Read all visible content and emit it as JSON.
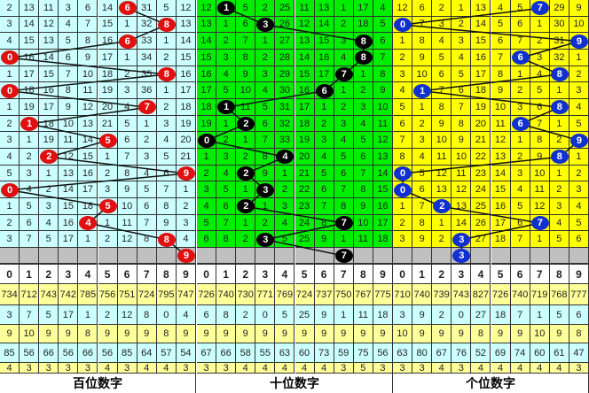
{
  "chart_data": {
    "type": "table",
    "digits": [
      "0",
      "1",
      "2",
      "3",
      "4",
      "5",
      "6",
      "7",
      "8",
      "9"
    ],
    "panels": [
      {
        "label": "百位数字",
        "bg": "#ccffff",
        "ball_color": "#e01010",
        "rows": [
          [
            2,
            13,
            11,
            3,
            6,
            14,
            6,
            31,
            5,
            12
          ],
          [
            3,
            14,
            12,
            4,
            7,
            15,
            1,
            32,
            8,
            13
          ],
          [
            4,
            15,
            13,
            5,
            8,
            16,
            6,
            33,
            1,
            14
          ],
          [
            0,
            16,
            14,
            6,
            9,
            17,
            1,
            34,
            2,
            15
          ],
          [
            1,
            17,
            15,
            7,
            10,
            18,
            2,
            35,
            8,
            16
          ],
          [
            0,
            18,
            16,
            8,
            11,
            19,
            3,
            36,
            1,
            17
          ],
          [
            1,
            19,
            17,
            9,
            12,
            20,
            4,
            7,
            2,
            18
          ],
          [
            2,
            1,
            18,
            10,
            13,
            21,
            5,
            1,
            3,
            19
          ],
          [
            3,
            1,
            19,
            11,
            14,
            5,
            6,
            2,
            4,
            20
          ],
          [
            4,
            2,
            2,
            12,
            15,
            1,
            7,
            3,
            5,
            21
          ],
          [
            5,
            3,
            1,
            13,
            16,
            2,
            8,
            4,
            6,
            9
          ],
          [
            0,
            4,
            2,
            14,
            17,
            3,
            9,
            5,
            7,
            1
          ],
          [
            1,
            5,
            3,
            15,
            18,
            5,
            10,
            6,
            8,
            2
          ],
          [
            2,
            6,
            4,
            16,
            4,
            1,
            11,
            7,
            9,
            3
          ],
          [
            3,
            7,
            5,
            17,
            1,
            2,
            12,
            8,
            8,
            4
          ]
        ],
        "picks": [
          6,
          8,
          6,
          0,
          8,
          0,
          7,
          1,
          5,
          2,
          9,
          0,
          5,
          4,
          8
        ],
        "next_pick": 9,
        "stats": [
          [
            "734",
            "712",
            "743",
            "742",
            "785",
            "756",
            "751",
            "724",
            "795",
            "747"
          ],
          [
            "3",
            "7",
            "5",
            "17",
            "1",
            "2",
            "12",
            "8",
            "0",
            "4"
          ],
          [
            "9",
            "10",
            "9",
            "9",
            "8",
            "9",
            "9",
            "9",
            "8",
            "9"
          ],
          [
            "85",
            "56",
            "66",
            "56",
            "66",
            "56",
            "85",
            "64",
            "57",
            "54"
          ],
          [
            "4",
            "3",
            "3",
            "3",
            "3",
            "4",
            "3",
            "4",
            "4",
            "3"
          ]
        ]
      },
      {
        "label": "十位数字",
        "bg": "#00ee00",
        "ball_color": "#000000",
        "rows": [
          [
            12,
            1,
            5,
            2,
            25,
            11,
            13,
            1,
            17,
            4
          ],
          [
            13,
            1,
            6,
            3,
            26,
            12,
            14,
            2,
            18,
            5
          ],
          [
            14,
            2,
            7,
            1,
            27,
            13,
            15,
            3,
            8,
            6
          ],
          [
            15,
            3,
            8,
            2,
            28,
            14,
            16,
            4,
            8,
            7
          ],
          [
            16,
            4,
            9,
            3,
            29,
            15,
            17,
            7,
            1,
            8
          ],
          [
            17,
            5,
            10,
            4,
            30,
            16,
            6,
            1,
            2,
            9
          ],
          [
            18,
            1,
            11,
            5,
            31,
            17,
            1,
            2,
            3,
            10
          ],
          [
            19,
            1,
            2,
            6,
            32,
            18,
            2,
            3,
            4,
            11
          ],
          [
            0,
            2,
            1,
            7,
            33,
            19,
            3,
            4,
            5,
            12
          ],
          [
            1,
            3,
            2,
            8,
            4,
            20,
            4,
            5,
            6,
            13
          ],
          [
            2,
            4,
            2,
            9,
            1,
            21,
            5,
            6,
            7,
            14
          ],
          [
            3,
            5,
            1,
            3,
            2,
            22,
            6,
            7,
            8,
            15
          ],
          [
            4,
            6,
            2,
            1,
            3,
            23,
            7,
            8,
            9,
            16
          ],
          [
            5,
            7,
            1,
            2,
            4,
            24,
            8,
            7,
            10,
            17
          ],
          [
            6,
            8,
            2,
            3,
            5,
            25,
            9,
            1,
            11,
            18
          ]
        ],
        "picks": [
          1,
          3,
          8,
          8,
          7,
          6,
          1,
          2,
          0,
          4,
          2,
          3,
          2,
          7,
          3
        ],
        "next_pick": 7,
        "stats": [
          [
            "726",
            "740",
            "730",
            "771",
            "769",
            "724",
            "737",
            "750",
            "767",
            "775"
          ],
          [
            "6",
            "8",
            "2",
            "0",
            "5",
            "25",
            "9",
            "1",
            "11",
            "18"
          ],
          [
            "9",
            "9",
            "9",
            "9",
            "9",
            "9",
            "9",
            "9",
            "9",
            "9"
          ],
          [
            "67",
            "66",
            "58",
            "55",
            "63",
            "60",
            "73",
            "59",
            "75",
            "56"
          ],
          [
            "3",
            "3",
            "4",
            "4",
            "4",
            "4",
            "4",
            "3",
            "5",
            "3"
          ]
        ]
      },
      {
        "label": "个位数字",
        "bg": "#ffff00",
        "ball_color": "#1030d0",
        "rows": [
          [
            12,
            6,
            2,
            1,
            13,
            4,
            5,
            7,
            29,
            9
          ],
          [
            0,
            7,
            3,
            2,
            14,
            5,
            6,
            1,
            30,
            10
          ],
          [
            1,
            8,
            4,
            3,
            15,
            6,
            7,
            2,
            31,
            9
          ],
          [
            2,
            9,
            5,
            4,
            16,
            7,
            6,
            3,
            32,
            1
          ],
          [
            3,
            10,
            6,
            5,
            17,
            8,
            1,
            4,
            8,
            2
          ],
          [
            4,
            1,
            7,
            6,
            18,
            9,
            2,
            5,
            1,
            3
          ],
          [
            5,
            1,
            8,
            7,
            19,
            10,
            3,
            6,
            8,
            4
          ],
          [
            6,
            2,
            9,
            8,
            20,
            11,
            6,
            7,
            1,
            5
          ],
          [
            7,
            3,
            10,
            9,
            21,
            12,
            1,
            8,
            2,
            9
          ],
          [
            8,
            4,
            11,
            10,
            22,
            13,
            2,
            9,
            8,
            1
          ],
          [
            0,
            5,
            12,
            11,
            23,
            14,
            3,
            10,
            1,
            2
          ],
          [
            0,
            6,
            13,
            12,
            24,
            15,
            4,
            11,
            2,
            3
          ],
          [
            1,
            7,
            2,
            13,
            25,
            16,
            5,
            12,
            3,
            4
          ],
          [
            2,
            8,
            1,
            14,
            26,
            17,
            6,
            7,
            4,
            5
          ],
          [
            3,
            9,
            2,
            3,
            27,
            18,
            7,
            1,
            5,
            6
          ]
        ],
        "picks": [
          7,
          0,
          9,
          6,
          8,
          1,
          8,
          6,
          9,
          8,
          0,
          0,
          2,
          7,
          3
        ],
        "next_pick": 3,
        "stats": [
          [
            "710",
            "740",
            "739",
            "743",
            "827",
            "726",
            "740",
            "719",
            "768",
            "777"
          ],
          [
            "3",
            "9",
            "2",
            "0",
            "27",
            "18",
            "7",
            "1",
            "5",
            "6"
          ],
          [
            "10",
            "9",
            "9",
            "9",
            "8",
            "9",
            "9",
            "10",
            "9",
            "8"
          ],
          [
            "63",
            "80",
            "67",
            "76",
            "52",
            "69",
            "74",
            "60",
            "61",
            "47"
          ],
          [
            "3",
            "3",
            "4",
            "3",
            "4",
            "4",
            "4",
            "4",
            "4",
            "3"
          ]
        ]
      }
    ],
    "colors": {
      "stat_yellow": "#ffff99",
      "stat_cyan": "#ccffff",
      "pending_row": "#c0c0c0"
    }
  }
}
